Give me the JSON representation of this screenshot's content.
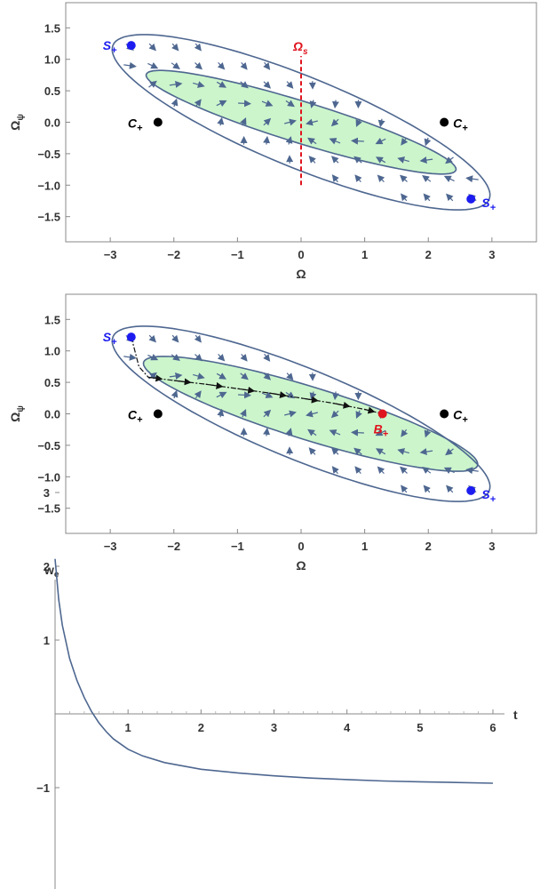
{
  "chart_data": [
    {
      "type": "streamplot",
      "xlabel": "Ω",
      "ylabel": "Ωψ",
      "ylabel_main": "Ω",
      "ylabel_sub": "ψ",
      "xlim": [
        -3.7,
        3.7
      ],
      "ylim": [
        -1.9,
        1.9
      ],
      "xticks": [
        "−3",
        "−2",
        "−1",
        "0",
        "1",
        "2",
        "3"
      ],
      "xtick_values": [
        -3,
        -2,
        -1,
        0,
        1,
        2,
        3
      ],
      "yticks": [
        "1.5",
        "1.0",
        "0.5",
        "0.0",
        "−0.5",
        "−1.0",
        "−1.5"
      ],
      "ytick_values": [
        1.5,
        1.0,
        0.5,
        0.0,
        -0.5,
        -1.0,
        -1.5
      ],
      "points": [
        {
          "label": "S",
          "sub": "+",
          "x": -2.67,
          "y": 1.22,
          "color": "#1c1cf0"
        },
        {
          "label": "S",
          "sub": "+",
          "x": 2.67,
          "y": -1.22,
          "color": "#1c1cf0"
        },
        {
          "label": "C",
          "sub": "+",
          "x": -2.25,
          "y": 0.0,
          "color": "#000000"
        },
        {
          "label": "C",
          "sub": "+",
          "x": 2.25,
          "y": 0.0,
          "color": "#000000"
        }
      ],
      "special": {
        "label": "Ω",
        "sub": "s",
        "x": 0,
        "y_range": [
          -1.0,
          1.05
        ],
        "color": "#e0141e"
      },
      "green_region_color": "#ccf5cc",
      "stream_color": "#4e6790"
    },
    {
      "type": "streamplot",
      "xlabel": "Ω",
      "ylabel": "Ωψ",
      "ylabel_main": "Ω",
      "ylabel_sub": "ψ",
      "xlim": [
        -3.7,
        3.7
      ],
      "ylim": [
        -1.9,
        1.9
      ],
      "xticks": [
        "−3",
        "−2",
        "−1",
        "0",
        "1",
        "2",
        "3"
      ],
      "xtick_values": [
        -3,
        -2,
        -1,
        0,
        1,
        2,
        3
      ],
      "yticks": [
        "1.5",
        "1.0",
        "0.5",
        "0.0",
        "−0.5",
        "−1.0",
        "−1.5"
      ],
      "ytick_values": [
        1.5,
        1.0,
        0.5,
        0.0,
        -0.5,
        -1.0,
        -1.5
      ],
      "points": [
        {
          "label": "S",
          "sub": "+",
          "x": -2.67,
          "y": 1.22,
          "color": "#1c1cf0"
        },
        {
          "label": "S",
          "sub": "+",
          "x": 2.67,
          "y": -1.22,
          "color": "#1c1cf0"
        },
        {
          "label": "C",
          "sub": "+",
          "x": -2.25,
          "y": 0.0,
          "color": "#000000"
        },
        {
          "label": "C",
          "sub": "+",
          "x": 2.25,
          "y": 0.0,
          "color": "#000000"
        },
        {
          "label": "B",
          "sub": "+",
          "x": 1.28,
          "y": 0.0,
          "color": "#e0141e"
        }
      ],
      "trajectory": {
        "x": [
          -2.67,
          -2.6,
          -2.55,
          -2.4,
          -2.0,
          -1.5,
          -1.0,
          -0.5,
          0.0,
          0.5,
          1.0,
          1.28
        ],
        "y": [
          1.22,
          0.95,
          0.75,
          0.58,
          0.53,
          0.47,
          0.4,
          0.33,
          0.25,
          0.17,
          0.07,
          0.0
        ]
      },
      "green_region_color": "#ccf5cc",
      "stream_color": "#4e6790"
    },
    {
      "type": "line",
      "xlabel": "t",
      "ylabel": "w",
      "ylabel_sub": "e",
      "xlim": [
        0,
        6.2
      ],
      "ylim": [
        -1.6,
        3.0
      ],
      "xticks": [
        "1",
        "2",
        "3",
        "4",
        "5",
        "6"
      ],
      "xtick_values": [
        1,
        2,
        3,
        4,
        5,
        6
      ],
      "yticks": [
        "3",
        "2",
        "1",
        "−1"
      ],
      "ytick_values": [
        3,
        2,
        1,
        -1
      ],
      "series": [
        {
          "color": "#4e6790",
          "x": [
            0,
            0.05,
            0.1,
            0.2,
            0.3,
            0.4,
            0.5,
            0.6,
            0.7,
            0.8,
            1.0,
            1.2,
            1.5,
            2.0,
            2.5,
            3.0,
            3.5,
            4.0,
            4.5,
            5.0,
            5.5,
            6.0
          ],
          "y": [
            2.1,
            1.55,
            1.2,
            0.75,
            0.45,
            0.22,
            0.03,
            -0.12,
            -0.24,
            -0.34,
            -0.48,
            -0.57,
            -0.66,
            -0.75,
            -0.8,
            -0.84,
            -0.87,
            -0.89,
            -0.91,
            -0.92,
            -0.93,
            -0.94
          ]
        }
      ]
    }
  ]
}
